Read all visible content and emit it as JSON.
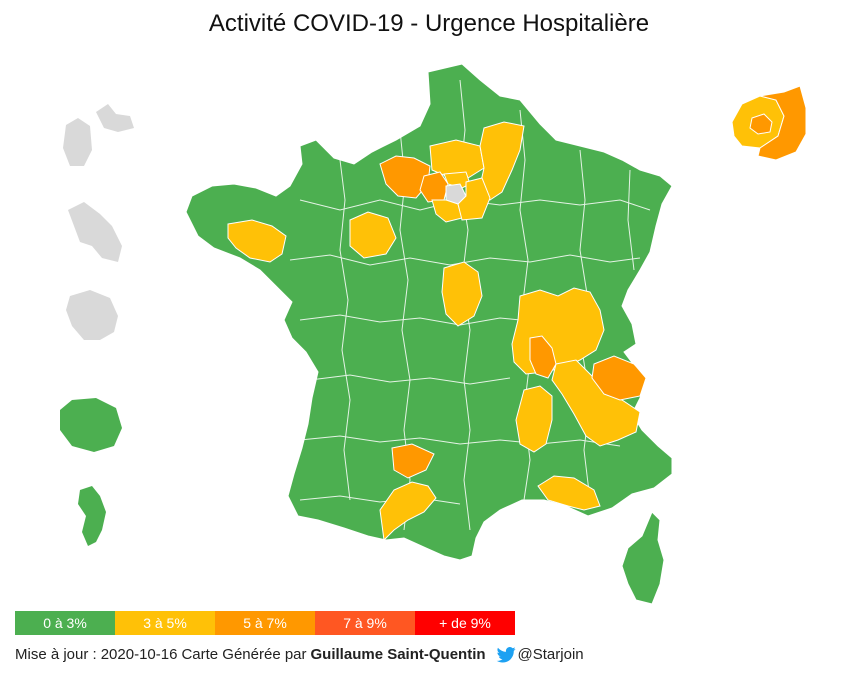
{
  "title": "Activité COVID-19 - Urgence Hospitalière",
  "colors": {
    "level1": "#4caf50",
    "level2": "#ffc107",
    "level3": "#ff9800",
    "level4": "#ff5722",
    "level5": "#ff0000",
    "no_data": "#d9d9d9",
    "twitter": "#1da1f2"
  },
  "legend": [
    {
      "label": "0 à 3%",
      "color": "#4caf50"
    },
    {
      "label": "3 à 5%",
      "color": "#ffc107"
    },
    {
      "label": "5 à 7%",
      "color": "#ff9800"
    },
    {
      "label": "7 à 9%",
      "color": "#ff5722"
    },
    {
      "label": "+ de 9%",
      "color": "#ff0000"
    }
  ],
  "footer": {
    "update_label": "Mise à jour :",
    "update_date": "2020-10-16",
    "generated_label": "Carte Générée par",
    "author": "Guillaume Saint-Quentin",
    "handle": "@Starjoin",
    "icon": "twitter-icon"
  }
}
